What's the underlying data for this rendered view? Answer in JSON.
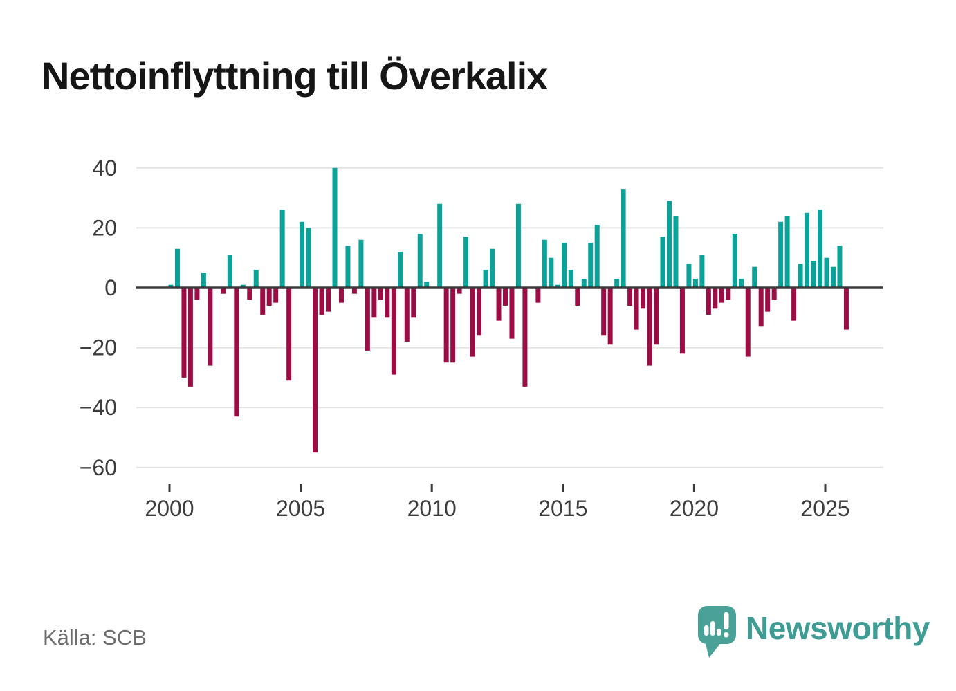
{
  "header": {
    "title": "Nettoinflyttning till Överkalix"
  },
  "footer": {
    "source_label": "Källa: SCB",
    "brand_name": "Newsworthy",
    "brand_logo_icon": "speech-bubble-bar-chart-exclamation-icon"
  },
  "colors": {
    "background": "#ffffff",
    "title_text": "#161616",
    "positive_bar": "#0ba29a",
    "negative_bar": "#9d0d45",
    "zero_axis": "#3a3a3a",
    "gridline": "#e3e3e4",
    "axis_text": "#3d3d3d",
    "tick_mark": "#3a3a3a",
    "source_text": "#6e6e6e",
    "brand_text": "#3e9c94",
    "brand_bubble": "#4aa197",
    "brand_glyph": "#ffffff"
  },
  "chart_data": {
    "type": "bar",
    "title": "Nettoinflyttning till Överkalix",
    "x_frequency": "quarterly",
    "xlabel": "",
    "ylabel": "",
    "ylim": [
      -60,
      40
    ],
    "yticks": [
      40,
      20,
      0,
      -20,
      -40,
      -60
    ],
    "xticks": [
      2000,
      2005,
      2010,
      2015,
      2020,
      2025
    ],
    "grid": true,
    "legend": "none",
    "values_by_year": {
      "2000": [
        1,
        13,
        -30,
        -33
      ],
      "2001": [
        -4,
        5,
        -26,
        0
      ],
      "2002": [
        -2,
        11,
        -43,
        1
      ],
      "2003": [
        -4,
        6,
        -9,
        -6
      ],
      "2004": [
        -5,
        26,
        -31,
        0
      ],
      "2005": [
        22,
        20,
        -55,
        -9
      ],
      "2006": [
        -8,
        40,
        -5,
        14
      ],
      "2007": [
        -2,
        16,
        -21,
        -10
      ],
      "2008": [
        -4,
        -10,
        -29,
        12
      ],
      "2009": [
        -18,
        -10,
        18,
        2
      ],
      "2010": [
        0,
        28,
        -25,
        -25
      ],
      "2011": [
        -2,
        17,
        -23,
        -16
      ],
      "2012": [
        6,
        13,
        -11,
        -6
      ],
      "2013": [
        -17,
        28,
        -33,
        0
      ],
      "2014": [
        -5,
        16,
        10,
        1
      ],
      "2015": [
        15,
        6,
        -6,
        3
      ],
      "2016": [
        15,
        21,
        -16,
        -19
      ],
      "2017": [
        3,
        33,
        -6,
        -14
      ],
      "2018": [
        -7,
        -26,
        -19,
        17
      ],
      "2019": [
        29,
        24,
        -22,
        8
      ],
      "2020": [
        3,
        11,
        -9,
        -7
      ],
      "2021": [
        -5,
        -4,
        18,
        3
      ],
      "2022": [
        -23,
        7,
        -13,
        -8
      ],
      "2023": [
        -4,
        22,
        24,
        -11
      ],
      "2024": [
        8,
        25,
        9,
        26
      ],
      "2025": [
        10,
        7,
        14,
        -14
      ]
    }
  }
}
